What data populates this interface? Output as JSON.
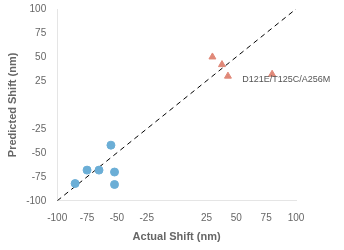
{
  "chart_data": {
    "type": "scatter",
    "xlabel": "Actual Shift (nm)",
    "ylabel": "Predicted Shift (nm)",
    "xlim": [
      -100,
      100
    ],
    "ylim": [
      -100,
      100
    ],
    "xticks": [
      -100,
      -75,
      -50,
      -25,
      25,
      50,
      75,
      100
    ],
    "yticks": [
      -100,
      -75,
      -50,
      -25,
      25,
      50,
      75,
      100
    ],
    "grid": false,
    "series": [
      {
        "type": "line",
        "line_style": "dashed",
        "color": "#000000",
        "x": [
          -100,
          100
        ],
        "y": [
          -100,
          100
        ]
      },
      {
        "type": "scatter",
        "marker": "circle",
        "color": "#6baed6",
        "x": [
          -85,
          -75,
          -65,
          -55,
          -52,
          -52
        ],
        "y": [
          -82,
          -68,
          -68,
          -42,
          -70,
          -83
        ]
      },
      {
        "type": "scatter",
        "marker": "triangle",
        "color": "#e08878",
        "x": [
          30,
          38,
          43,
          80
        ],
        "y": [
          50,
          42,
          30,
          32
        ]
      }
    ],
    "annotations": [
      {
        "text": "D121E/T125C/A256M",
        "x": 55,
        "y": 22
      }
    ]
  }
}
